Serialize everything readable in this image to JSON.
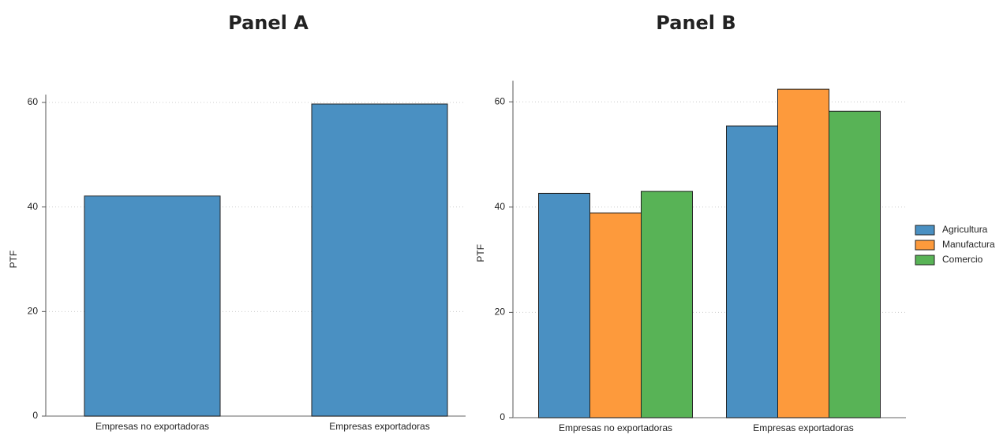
{
  "chart_data": [
    {
      "type": "bar",
      "title": "Panel A",
      "y_label": "PTF",
      "categories": [
        "Empresas no exportadoras",
        "Empresas exportadoras"
      ],
      "values": [
        42.1,
        59.7
      ],
      "color": "#4a90c2",
      "ylim": [
        0,
        60
      ],
      "yticks": [
        0,
        20,
        40,
        60
      ],
      "grid": true
    },
    {
      "type": "bar",
      "title": "Panel B",
      "y_label": "PTF",
      "categories": [
        "Empresas no exportadoras",
        "Empresas exportadoras"
      ],
      "series": [
        {
          "name": "Agricultura",
          "color": "#4a90c2",
          "values": [
            42.6,
            55.4
          ]
        },
        {
          "name": "Manufactura",
          "color": "#fd9a3c",
          "values": [
            38.9,
            62.4
          ]
        },
        {
          "name": "Comercio",
          "color": "#58b356",
          "values": [
            43.0,
            58.2
          ]
        }
      ],
      "ylim": [
        0,
        62.5
      ],
      "yticks": [
        0,
        20,
        40,
        60
      ],
      "grid": true,
      "legend": "right"
    }
  ]
}
